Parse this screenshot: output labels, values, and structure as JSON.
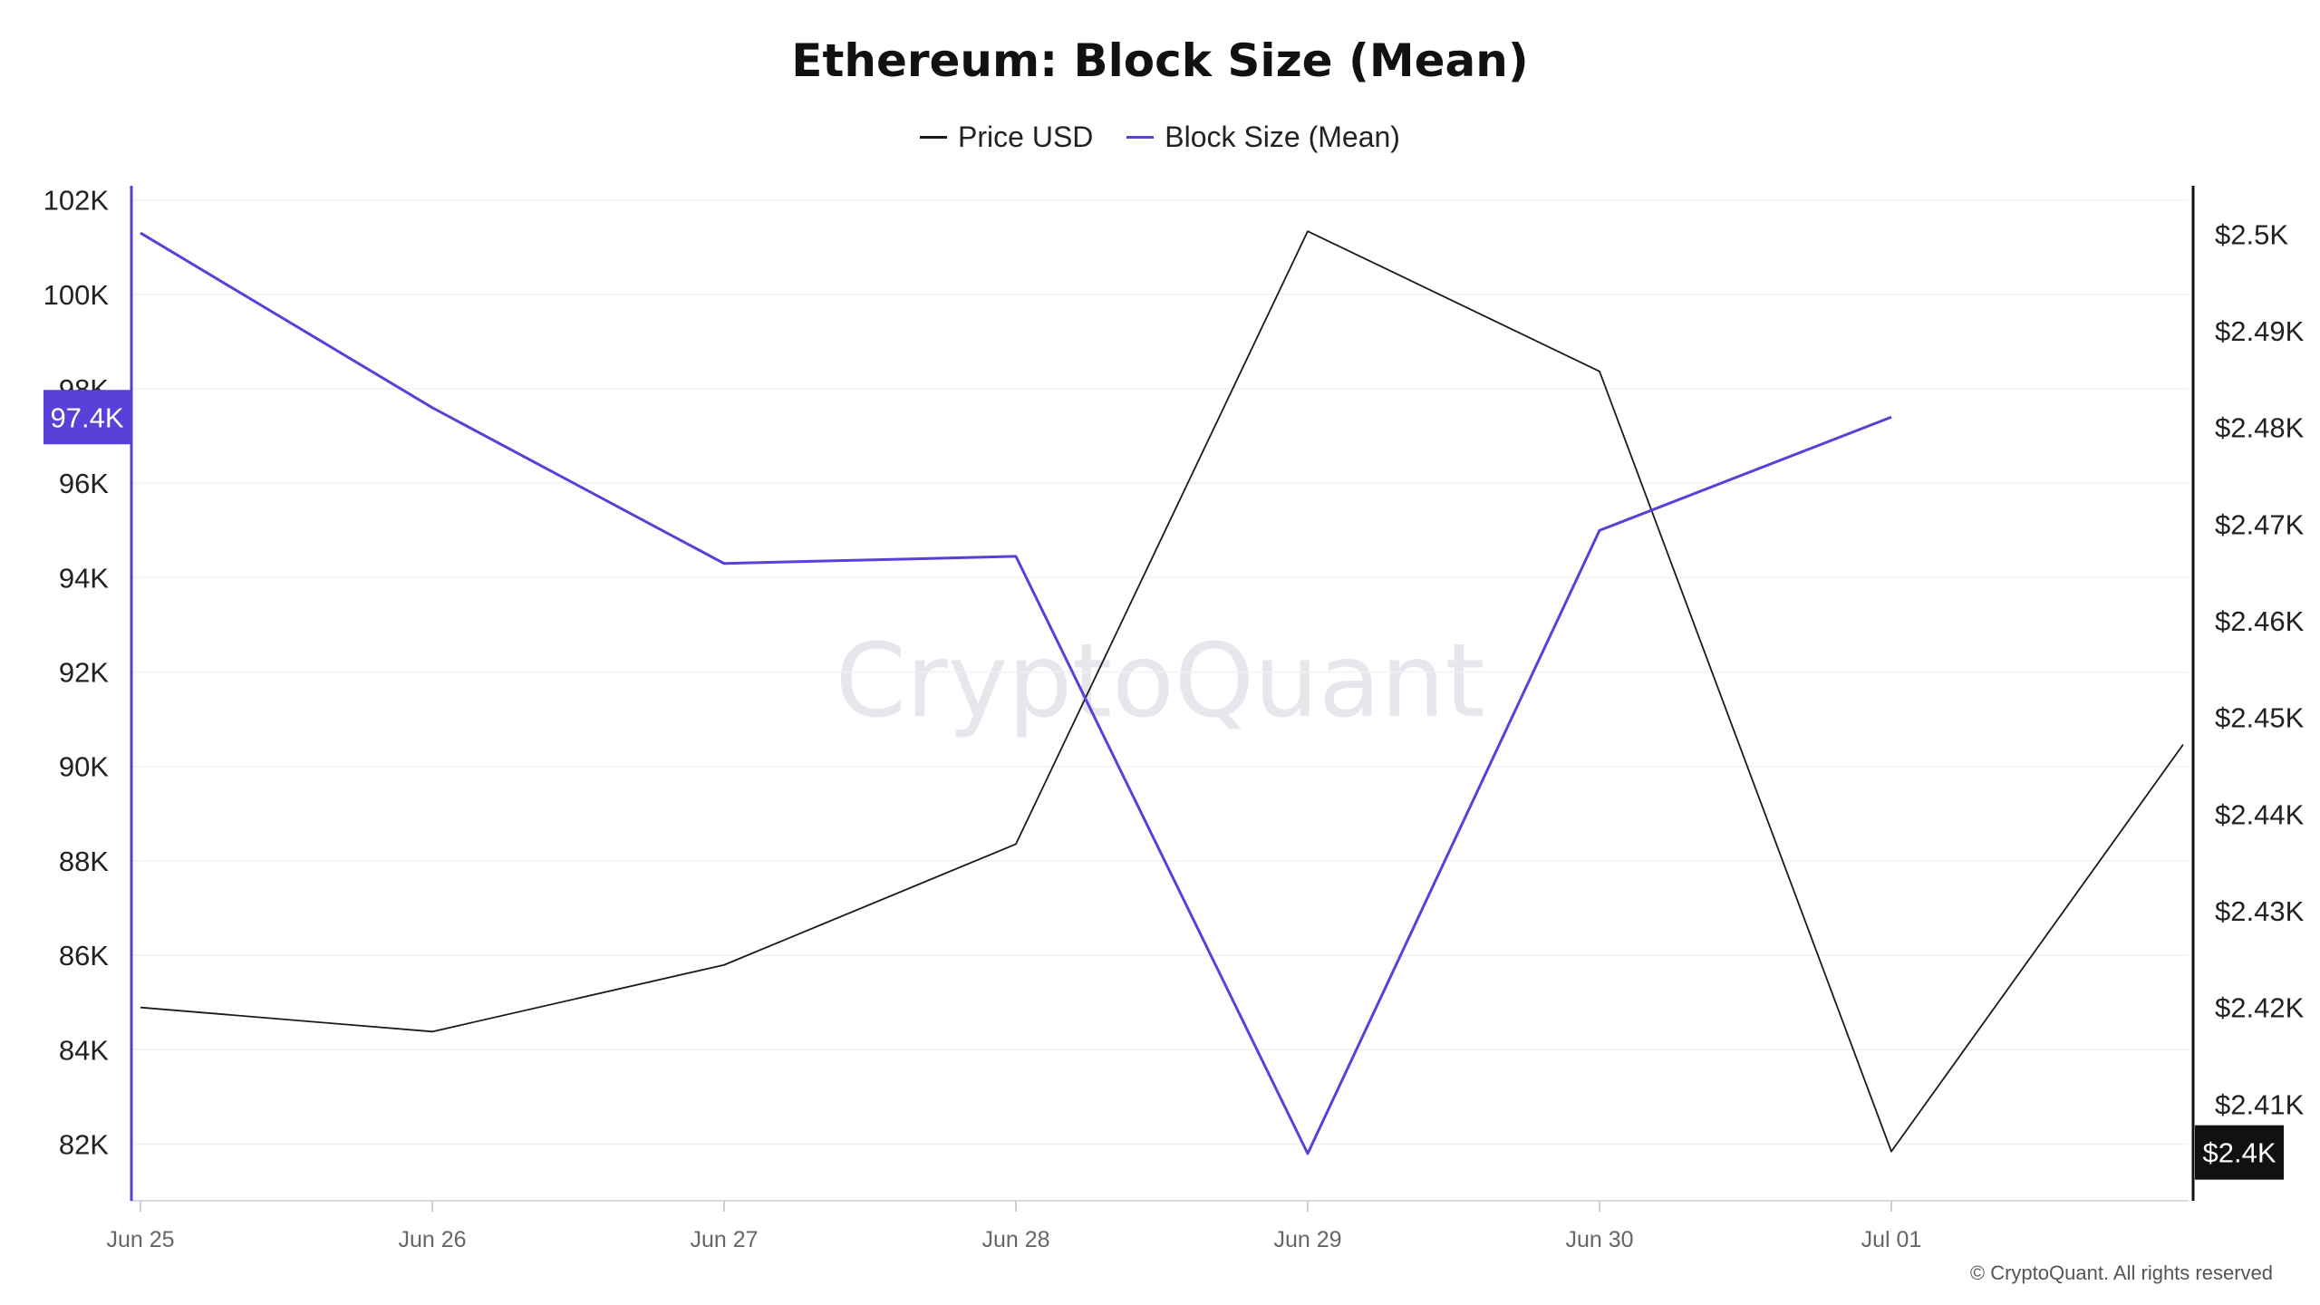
{
  "chart_data": {
    "type": "line",
    "title": "Ethereum: Block Size (Mean)",
    "categories": [
      "Jun 25",
      "Jun 26",
      "Jun 27",
      "Jun 28",
      "Jun 29",
      "Jun 30",
      "Jul 01"
    ],
    "series": [
      {
        "name": "Price USD",
        "axis": "right",
        "color": "#1a1a1a",
        "x": [
          0,
          1,
          2,
          3,
          4,
          5,
          6,
          7
        ],
        "values": [
          2420.0,
          2417.5,
          2424.4,
          2436.9,
          2500.3,
          2485.8,
          2405.1,
          2447.2
        ]
      },
      {
        "name": "Block Size (Mean)",
        "axis": "left",
        "color": "#5a3fd9",
        "x": [
          0,
          1,
          2,
          3,
          4,
          5,
          6
        ],
        "values": [
          101300,
          97600,
          94300,
          94450,
          81800,
          95000,
          97400
        ]
      }
    ],
    "left_axis": {
      "ylim": [
        80800,
        102300
      ],
      "ticks": [
        82000,
        84000,
        86000,
        88000,
        90000,
        92000,
        94000,
        96000,
        98000,
        100000,
        102000
      ],
      "tick_labels": [
        "82K",
        "84K",
        "86K",
        "88K",
        "90K",
        "92K",
        "94K",
        "96K",
        "98K",
        "100K",
        "102K"
      ],
      "color": "#5a3fd9",
      "current_value_label": "97.4K",
      "current_value": 97400
    },
    "right_axis": {
      "ylim": [
        2400,
        2505
      ],
      "ticks": [
        2410,
        2420,
        2430,
        2440,
        2450,
        2460,
        2470,
        2480,
        2490,
        2500
      ],
      "tick_labels": [
        "$2.41K",
        "$2.42K",
        "$2.43K",
        "$2.44K",
        "$2.45K",
        "$2.46K",
        "$2.47K",
        "$2.48K",
        "$2.49K",
        "$2.5K"
      ],
      "color": "#111111",
      "current_value_label": "$2.4K",
      "current_value": 2405
    },
    "grid": true,
    "legend_position": "top-center",
    "watermark": "CryptoQuant"
  },
  "footer": "© CryptoQuant. All rights reserved"
}
